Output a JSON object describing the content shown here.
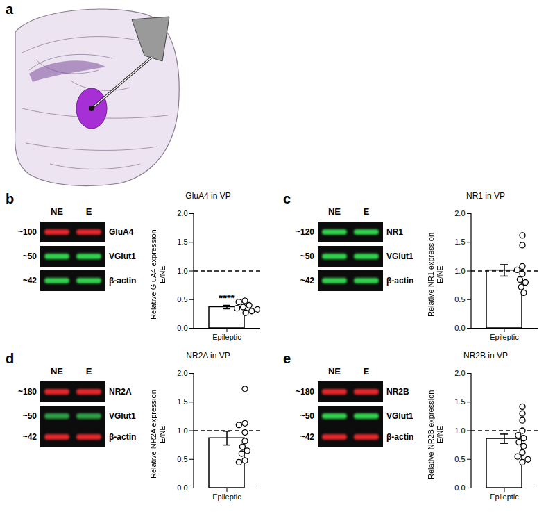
{
  "chart_data": [
    {
      "type": "bar",
      "title": "GluA4 in VP",
      "y_label": "Relative GluA4 expression\nE/NE",
      "categories": [
        "Epileptic"
      ],
      "values": [
        0.37
      ],
      "error": [
        0.03
      ],
      "points": [
        0.48,
        0.46,
        0.4,
        0.37,
        0.35,
        0.3,
        0.27,
        0.33
      ],
      "reference_y": 1,
      "color": "#ffffff",
      "ylim": [
        0,
        2
      ],
      "yticks": [
        {
          "value": 0,
          "label": "0.0"
        },
        0.5,
        {
          "value": 1,
          "label": "1.0"
        },
        1.5,
        {
          "value": 2,
          "label": "2.0"
        }
      ],
      "annotations": [
        {
          "text": "****",
          "category": "Epileptic"
        }
      ]
    },
    {
      "type": "bar",
      "title": "NR1 in VP",
      "y_label": "Relative NR1 expression\nE/NE",
      "categories": [
        "Epileptic"
      ],
      "values": [
        1.01
      ],
      "error": [
        0.1
      ],
      "points": [
        1.62,
        1.45,
        1.08,
        1.02,
        0.95,
        0.85,
        0.8,
        0.72,
        0.62
      ],
      "reference_y": 1,
      "color": "#ffffff",
      "ylim": [
        0,
        2
      ],
      "yticks": [
        {
          "value": 0,
          "label": "0.0"
        },
        0.5,
        {
          "value": 1,
          "label": "1.0"
        },
        1.5,
        {
          "value": 2,
          "label": "2.0"
        }
      ],
      "annotations": []
    },
    {
      "type": "bar",
      "title": "NR2A in VP",
      "y_label": "Relative NR2A expression\nE/NE",
      "categories": [
        "Epileptic"
      ],
      "values": [
        0.87
      ],
      "error": [
        0.12
      ],
      "points": [
        1.73,
        1.13,
        1.1,
        0.97,
        0.82,
        0.72,
        0.65,
        0.6,
        0.48,
        0.45
      ],
      "reference_y": 1,
      "color": "#ffffff",
      "ylim": [
        0,
        2
      ],
      "yticks": [
        {
          "value": 0,
          "label": "0.0"
        },
        0.5,
        {
          "value": 1,
          "label": "1.0"
        },
        1.5,
        {
          "value": 2,
          "label": "2.0"
        }
      ],
      "annotations": []
    },
    {
      "type": "bar",
      "title": "NR2B in VP",
      "y_label": "Relative NR2B expression\nE/NE",
      "categories": [
        "Epileptic"
      ],
      "values": [
        0.86
      ],
      "error": [
        0.08
      ],
      "points": [
        1.42,
        1.3,
        1.18,
        1.0,
        0.92,
        0.87,
        0.8,
        0.73,
        0.62,
        0.55,
        0.45,
        0.5
      ],
      "reference_y": 1,
      "color": "#ffffff",
      "ylim": [
        0,
        2
      ],
      "yticks": [
        {
          "value": 0,
          "label": "0.0"
        },
        0.5,
        {
          "value": 1,
          "label": "1.0"
        },
        1.5,
        {
          "value": 2,
          "label": "2.0"
        }
      ],
      "annotations": []
    }
  ],
  "figure": {
    "atlas_letter": "a",
    "panels": [
      {
        "letter": "b",
        "lanes": [
          "NE",
          "E"
        ],
        "boxes": [
          [
            {
              "size": "~100",
              "name": "GluA4",
              "color": "#e3262b"
            }
          ],
          [
            {
              "size": "~50",
              "name": "VGlut1",
              "color": "#33d14d"
            }
          ],
          [
            {
              "size": "~42",
              "name": "β-actin",
              "color": "#33d14d"
            }
          ]
        ]
      },
      {
        "letter": "c",
        "lanes": [
          "NE",
          "E"
        ],
        "boxes": [
          [
            {
              "size": "~120",
              "name": "NR1",
              "color": "#33d14d"
            }
          ],
          [
            {
              "size": "~50",
              "name": "VGlut1",
              "color": "#33d14d"
            }
          ],
          [
            {
              "size": "~42",
              "name": "β-actin",
              "color": "#33d14d"
            }
          ]
        ]
      },
      {
        "letter": "d",
        "lanes": [
          "NE",
          "E"
        ],
        "boxes": [
          [
            {
              "size": "~180",
              "name": "NR2A",
              "color": "#e3262b"
            }
          ],
          [
            {
              "size": "~50",
              "name": "VGlut1",
              "color": "#2f9e45"
            },
            {
              "size": "~42",
              "name": "β-actin",
              "color": "#e3262b"
            }
          ]
        ]
      },
      {
        "letter": "e",
        "lanes": [
          "NE",
          "E"
        ],
        "boxes": [
          [
            {
              "size": "~180",
              "name": "NR2B",
              "color": "#e3262b"
            }
          ],
          [
            {
              "size": "~50",
              "name": "VGlut1",
              "color": "#33d14d"
            },
            {
              "size": "~42",
              "name": "β-actin",
              "color": "#e3262b"
            }
          ]
        ]
      }
    ]
  }
}
